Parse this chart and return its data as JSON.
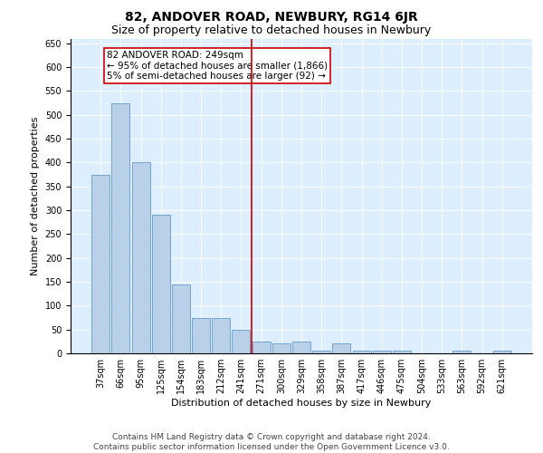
{
  "title": "82, ANDOVER ROAD, NEWBURY, RG14 6JR",
  "subtitle": "Size of property relative to detached houses in Newbury",
  "xlabel": "Distribution of detached houses by size in Newbury",
  "ylabel": "Number of detached properties",
  "categories": [
    "37sqm",
    "66sqm",
    "95sqm",
    "125sqm",
    "154sqm",
    "183sqm",
    "212sqm",
    "241sqm",
    "271sqm",
    "300sqm",
    "329sqm",
    "358sqm",
    "387sqm",
    "417sqm",
    "446sqm",
    "475sqm",
    "504sqm",
    "533sqm",
    "563sqm",
    "592sqm",
    "621sqm"
  ],
  "values": [
    375,
    525,
    400,
    290,
    145,
    75,
    75,
    50,
    25,
    20,
    25,
    5,
    20,
    5,
    5,
    5,
    0,
    0,
    5,
    0,
    5
  ],
  "bar_color": "#b8d0e8",
  "bar_edge_color": "#6699cc",
  "background_color": "#ddeeff",
  "vline_x_index": 7.5,
  "vline_color": "#cc0000",
  "annotation_lines": [
    "82 ANDOVER ROAD: 249sqm",
    "← 95% of detached houses are smaller (1,866)",
    "5% of semi-detached houses are larger (92) →"
  ],
  "annotation_box_color": "#cc0000",
  "annotation_bg": "white",
  "footer_line1": "Contains HM Land Registry data © Crown copyright and database right 2024.",
  "footer_line2": "Contains public sector information licensed under the Open Government Licence v3.0.",
  "ylim": [
    0,
    660
  ],
  "yticks": [
    0,
    50,
    100,
    150,
    200,
    250,
    300,
    350,
    400,
    450,
    500,
    550,
    600,
    650
  ],
  "title_fontsize": 10,
  "subtitle_fontsize": 9,
  "axis_label_fontsize": 8,
  "tick_fontsize": 7,
  "footer_fontsize": 6.5,
  "ann_fontsize": 7.5
}
